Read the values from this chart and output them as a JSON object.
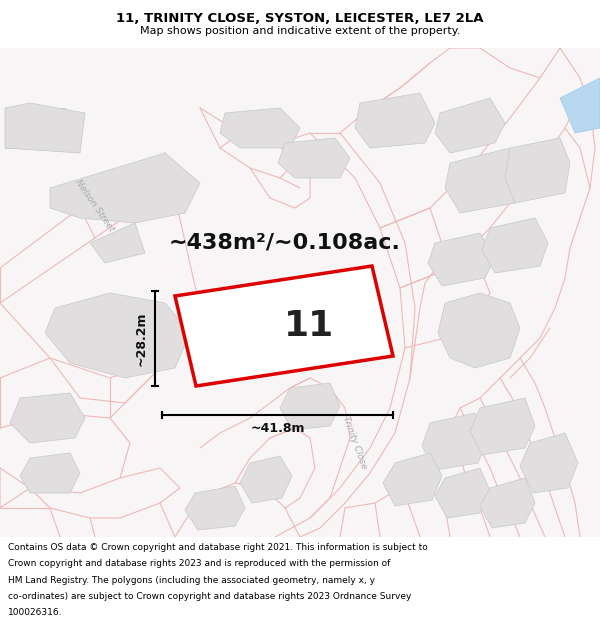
{
  "title_line1": "11, TRINITY CLOSE, SYSTON, LEICESTER, LE7 2LA",
  "title_line2": "Map shows position and indicative extent of the property.",
  "area_text": "~438m²/~0.108ac.",
  "plot_number": "11",
  "dim_width": "~41.8m",
  "dim_height": "~28.2m",
  "footer_lines": [
    "Contains OS data © Crown copyright and database right 2021. This information is subject to",
    "Crown copyright and database rights 2023 and is reproduced with the permission of",
    "HM Land Registry. The polygons (including the associated geometry, namely x, y",
    "co-ordinates) are subject to Crown copyright and database rights 2023 Ordnance Survey",
    "100026316."
  ],
  "map_bg": "#f7f5f5",
  "road_color": "#f0b8b8",
  "building_color": "#e0dede",
  "building_edge": "#c8c8c8",
  "plot_outline_color": "#dd0000",
  "street_label_color": "#aaaaaa",
  "title_fontsize": 9.5,
  "subtitle_fontsize": 8,
  "area_fontsize": 16,
  "plot_num_fontsize": 26,
  "dim_fontsize": 9,
  "footer_fontsize": 6.5
}
